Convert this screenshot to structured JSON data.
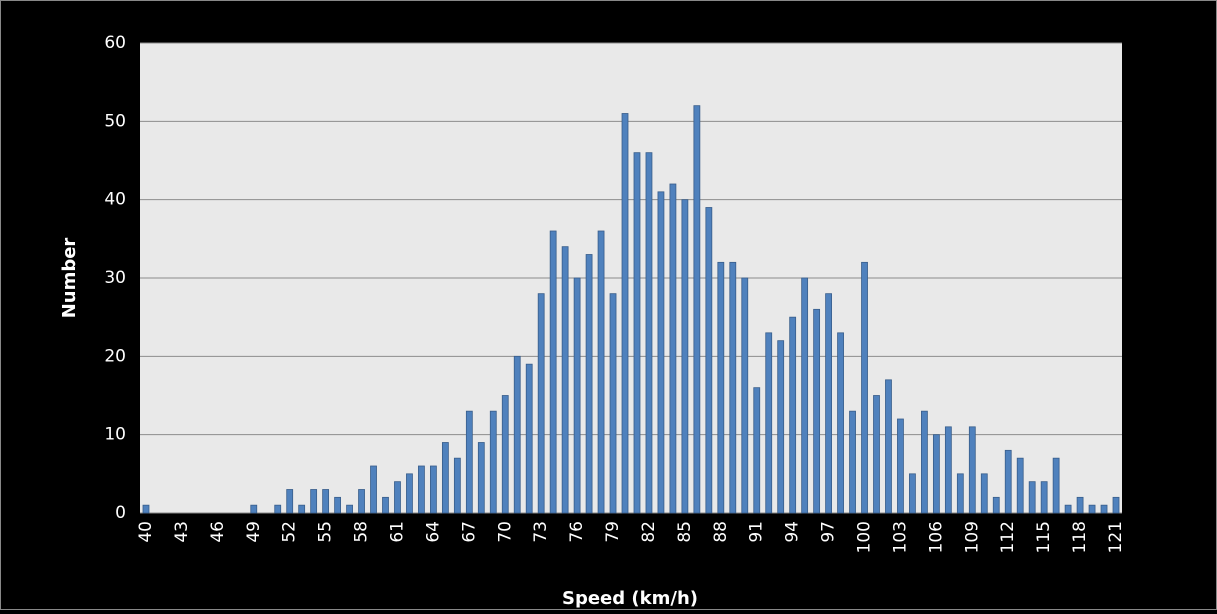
{
  "chart_data": {
    "type": "bar",
    "x_label": "Speed (km/h)",
    "y_label": "Number",
    "categories": [
      "40",
      null,
      null,
      "43",
      null,
      null,
      "46",
      null,
      null,
      "49",
      null,
      null,
      "52",
      null,
      null,
      "55",
      null,
      null,
      "58",
      null,
      null,
      "61",
      null,
      null,
      "64",
      null,
      null,
      "67",
      null,
      null,
      "70",
      null,
      null,
      "73",
      null,
      null,
      "76",
      null,
      null,
      "79",
      null,
      null,
      "82",
      null,
      null,
      "85",
      null,
      null,
      "88",
      null,
      null,
      "91",
      null,
      null,
      "94",
      null,
      null,
      "97",
      null,
      null,
      "100",
      null,
      null,
      "103",
      null,
      null,
      "106",
      null,
      null,
      "109",
      null,
      null,
      "112",
      null,
      null,
      "115",
      null,
      null,
      "118",
      null,
      null,
      "121"
    ],
    "values": [
      1,
      0,
      0,
      0,
      0,
      0,
      0,
      0,
      0,
      1,
      0,
      1,
      3,
      1,
      3,
      3,
      2,
      1,
      3,
      6,
      2,
      4,
      5,
      6,
      6,
      9,
      7,
      13,
      9,
      13,
      15,
      20,
      19,
      28,
      36,
      34,
      30,
      33,
      36,
      28,
      51,
      46,
      46,
      41,
      42,
      40,
      52,
      39,
      32,
      32,
      30,
      16,
      23,
      22,
      25,
      30,
      26,
      28,
      23,
      13,
      32,
      15,
      17,
      12,
      5,
      13,
      10,
      11,
      5,
      11,
      5,
      2,
      8,
      7,
      4,
      4,
      7,
      1,
      2,
      1,
      1,
      2
    ],
    "color": "#4f81bd",
    "ylim": [
      0,
      60
    ],
    "yticks": [
      0,
      10,
      20,
      30,
      40,
      50,
      60
    ],
    "grid": true
  }
}
